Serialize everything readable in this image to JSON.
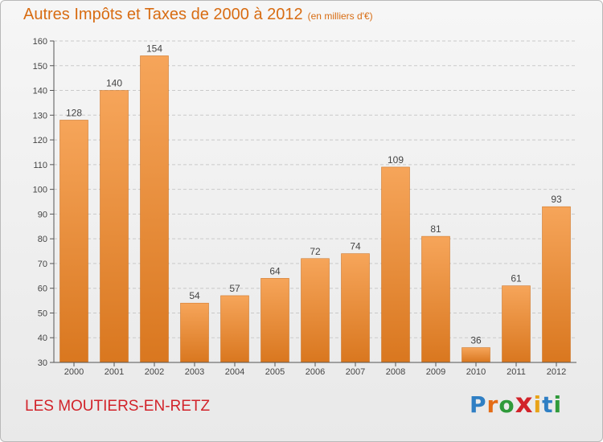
{
  "header": {
    "title": "Autres Impôts et Taxes de 2000 à 2012",
    "unit": "(en milliers d'€)"
  },
  "footer": {
    "place": "LES MOUTIERS-EN-RETZ",
    "logo_letters": [
      "P",
      "r",
      "o",
      "x",
      "i",
      "t",
      "i"
    ],
    "logo_colors": [
      "#2f7fc4",
      "#e46c16",
      "#2f9a3a",
      "#d2232a",
      "#e8a317",
      "#2f7fc4",
      "#2f9a3a"
    ]
  },
  "chart_data": {
    "type": "bar",
    "title": "Autres Impôts et Taxes de 2000 à 2012",
    "xlabel": "",
    "ylabel": "",
    "categories": [
      "2000",
      "2001",
      "2002",
      "2003",
      "2004",
      "2005",
      "2006",
      "2007",
      "2008",
      "2009",
      "2010",
      "2011",
      "2012"
    ],
    "values": [
      128,
      140,
      154,
      54,
      57,
      64,
      72,
      74,
      109,
      81,
      36,
      61,
      93
    ],
    "ylim": [
      30,
      160
    ],
    "yticks": [
      30,
      40,
      50,
      60,
      70,
      80,
      90,
      100,
      110,
      120,
      130,
      140,
      150,
      160
    ],
    "grid": true,
    "bar_color_light": "#f6a55a",
    "bar_color_dark": "#d9771f"
  }
}
